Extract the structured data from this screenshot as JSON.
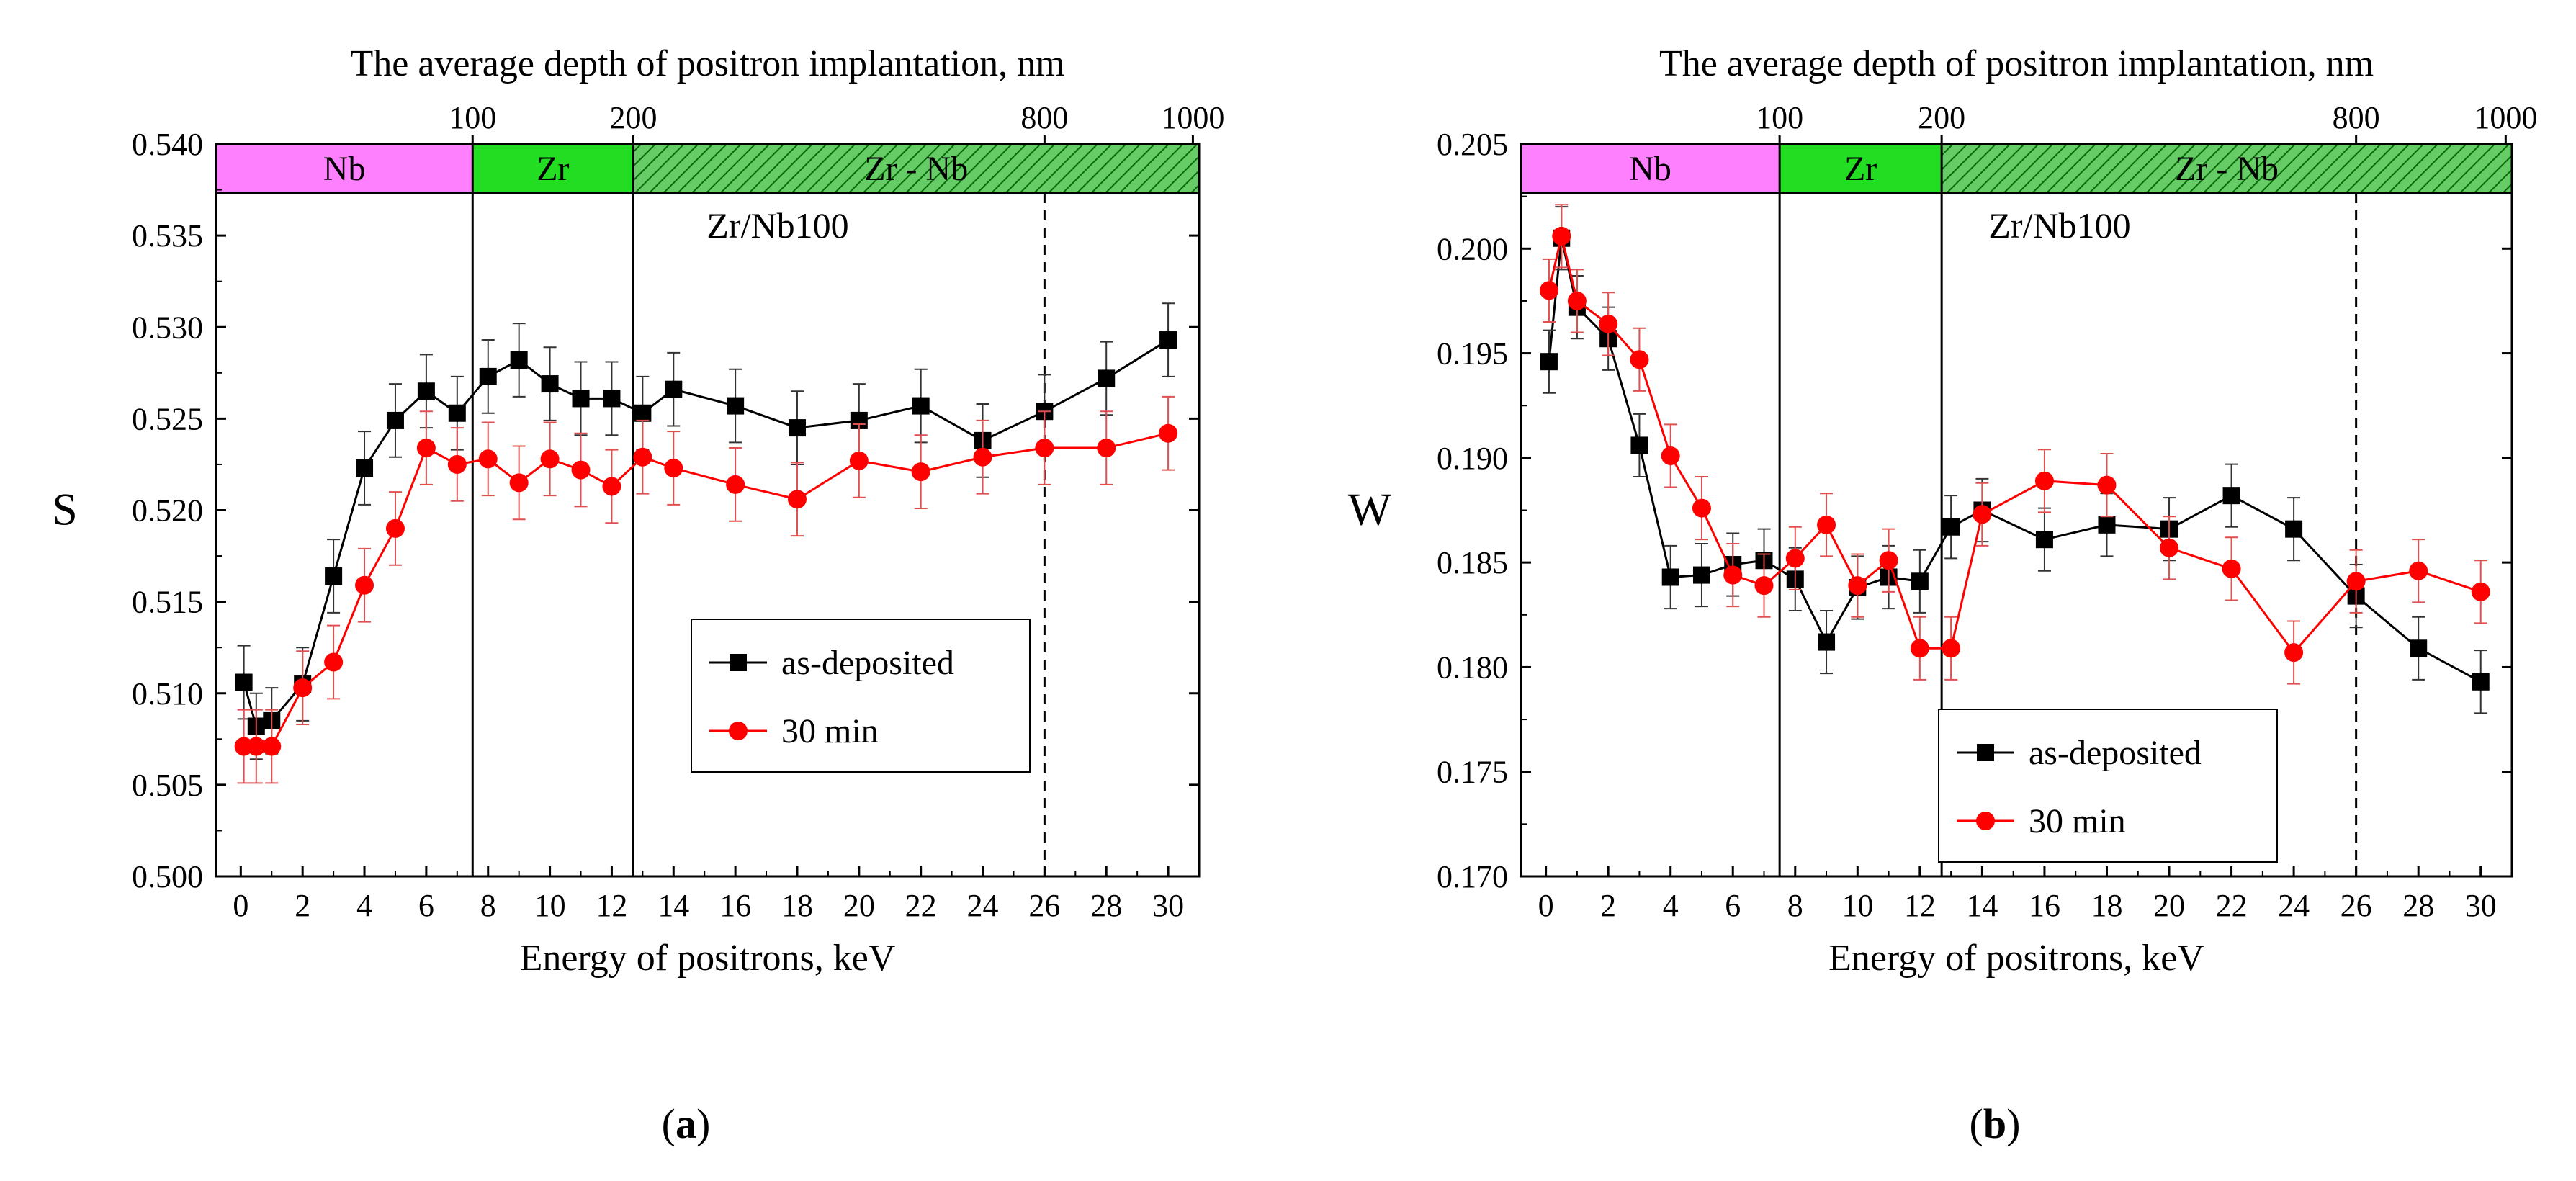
{
  "chart_data": [
    {
      "type": "line",
      "panel_label": "a",
      "ylabel": "S",
      "xlabel": "Energy of positrons, keV",
      "top_xlabel": "The average depth of positron implantation, nm",
      "annotation": "Zr/Nb100",
      "xlim": [
        -0.8,
        31
      ],
      "ylim": [
        0.5,
        0.54
      ],
      "x_ticks": [
        0,
        2,
        4,
        6,
        8,
        10,
        12,
        14,
        16,
        18,
        20,
        22,
        24,
        26,
        28,
        30
      ],
      "y_ticks": [
        0.5,
        0.505,
        0.51,
        0.515,
        0.52,
        0.525,
        0.53,
        0.535,
        0.54
      ],
      "y_tick_labels": [
        "0.500",
        "0.505",
        "0.510",
        "0.515",
        "0.520",
        "0.525",
        "0.530",
        "0.535",
        "0.540"
      ],
      "top_ticks": [
        {
          "label": "100",
          "x": 7.5
        },
        {
          "label": "200",
          "x": 12.7
        },
        {
          "label": "800",
          "x": 26
        },
        {
          "label": "1000",
          "x": 30.8
        }
      ],
      "regions": [
        {
          "label": "Nb",
          "x0": -0.8,
          "x1": 7.5,
          "color": "#ff80ff",
          "hatched": false
        },
        {
          "label": "Zr",
          "x0": 7.5,
          "x1": 12.7,
          "color": "#22dd22",
          "hatched": false
        },
        {
          "label": "Zr - Nb",
          "x0": 12.7,
          "x1": 31,
          "color": "#66cc66",
          "hatched": true
        }
      ],
      "solid_lines_x": [
        7.5,
        12.7
      ],
      "dashed_line_x": 26,
      "series": [
        {
          "name": "as-deposited",
          "color": "#000000",
          "marker": "square",
          "x": [
            0.1,
            0.5,
            1,
            2,
            3,
            4,
            5,
            6,
            7,
            8,
            9,
            10,
            11,
            12,
            13,
            14,
            16,
            18,
            20,
            22,
            24,
            26,
            28,
            30
          ],
          "y": [
            0.5106,
            0.5082,
            0.5085,
            0.5105,
            0.5164,
            0.5223,
            0.5249,
            0.5265,
            0.5253,
            0.5273,
            0.5282,
            0.5269,
            0.5261,
            0.5261,
            0.5253,
            0.5266,
            0.5257,
            0.5245,
            0.5249,
            0.5257,
            0.5238,
            0.5254,
            0.5272,
            0.5293
          ],
          "err": [
            0.002,
            0.0018,
            0.0018,
            0.002,
            0.002,
            0.002,
            0.002,
            0.002,
            0.002,
            0.002,
            0.002,
            0.002,
            0.002,
            0.002,
            0.002,
            0.002,
            0.002,
            0.002,
            0.002,
            0.002,
            0.002,
            0.002,
            0.002,
            0.002
          ]
        },
        {
          "name": "30 min",
          "color": "#ff0000",
          "marker": "circle",
          "x": [
            0.1,
            0.5,
            1,
            2,
            3,
            4,
            5,
            6,
            7,
            8,
            9,
            10,
            11,
            12,
            13,
            14,
            16,
            18,
            20,
            22,
            24,
            26,
            28,
            30
          ],
          "y": [
            0.5071,
            0.5071,
            0.5071,
            0.5103,
            0.5117,
            0.5159,
            0.519,
            0.5234,
            0.5225,
            0.5228,
            0.5215,
            0.5228,
            0.5222,
            0.5213,
            0.5229,
            0.5223,
            0.5214,
            0.5206,
            0.5227,
            0.5221,
            0.5229,
            0.5234,
            0.5234,
            0.5242
          ],
          "err": [
            0.002,
            0.002,
            0.002,
            0.002,
            0.002,
            0.002,
            0.002,
            0.002,
            0.002,
            0.002,
            0.002,
            0.002,
            0.002,
            0.002,
            0.002,
            0.002,
            0.002,
            0.002,
            0.002,
            0.002,
            0.002,
            0.002,
            0.002,
            0.002
          ]
        }
      ]
    },
    {
      "type": "line",
      "panel_label": "b",
      "ylabel": "W",
      "xlabel": "Energy of positrons, keV",
      "top_xlabel": "The average depth of positron implantation, nm",
      "annotation": "Zr/Nb100",
      "xlim": [
        -0.8,
        31
      ],
      "ylim": [
        0.17,
        0.205
      ],
      "x_ticks": [
        0,
        2,
        4,
        6,
        8,
        10,
        12,
        14,
        16,
        18,
        20,
        22,
        24,
        26,
        28,
        30
      ],
      "y_ticks": [
        0.17,
        0.175,
        0.18,
        0.185,
        0.19,
        0.195,
        0.2,
        0.205
      ],
      "y_tick_labels": [
        "0.170",
        "0.175",
        "0.180",
        "0.185",
        "0.190",
        "0.195",
        "0.200",
        "0.205"
      ],
      "top_ticks": [
        {
          "label": "100",
          "x": 7.5
        },
        {
          "label": "200",
          "x": 12.7
        },
        {
          "label": "800",
          "x": 26
        },
        {
          "label": "1000",
          "x": 30.8
        }
      ],
      "regions": [
        {
          "label": "Nb",
          "x0": -0.8,
          "x1": 7.5,
          "color": "#ff80ff",
          "hatched": false
        },
        {
          "label": "Zr",
          "x0": 7.5,
          "x1": 12.7,
          "color": "#22dd22",
          "hatched": false
        },
        {
          "label": "Zr - Nb",
          "x0": 12.7,
          "x1": 31,
          "color": "#66cc66",
          "hatched": true
        }
      ],
      "solid_lines_x": [
        7.5,
        12.7
      ],
      "dashed_line_x": 26,
      "series": [
        {
          "name": "as-deposited",
          "color": "#000000",
          "marker": "square",
          "x": [
            0.1,
            0.5,
            1,
            2,
            3,
            4,
            5,
            6,
            7,
            8,
            9,
            10,
            11,
            12,
            13,
            14,
            16,
            18,
            20,
            22,
            24,
            26,
            28,
            30
          ],
          "y": [
            0.1946,
            0.2005,
            0.1972,
            0.1957,
            0.1906,
            0.1843,
            0.1844,
            0.1849,
            0.1851,
            0.1842,
            0.1812,
            0.1838,
            0.1843,
            0.1841,
            0.1867,
            0.1875,
            0.1861,
            0.1868,
            0.1866,
            0.1882,
            0.1866,
            0.1834,
            0.1809,
            0.1793
          ],
          "err": [
            0.0015,
            0.0015,
            0.0015,
            0.0015,
            0.0015,
            0.0015,
            0.0015,
            0.0015,
            0.0015,
            0.0015,
            0.0015,
            0.0015,
            0.0015,
            0.0015,
            0.0015,
            0.0015,
            0.0015,
            0.0015,
            0.0015,
            0.0015,
            0.0015,
            0.0015,
            0.0015,
            0.0015
          ]
        },
        {
          "name": "30 min",
          "color": "#ff0000",
          "marker": "circle",
          "x": [
            0.1,
            0.5,
            1,
            2,
            3,
            4,
            5,
            6,
            7,
            8,
            9,
            10,
            11,
            12,
            13,
            14,
            16,
            18,
            20,
            22,
            24,
            26,
            28,
            30
          ],
          "y": [
            0.198,
            0.2006,
            0.1975,
            0.1964,
            0.1947,
            0.1901,
            0.1876,
            0.1844,
            0.1839,
            0.1852,
            0.1868,
            0.1839,
            0.1851,
            0.1809,
            0.1809,
            0.1873,
            0.1889,
            0.1887,
            0.1857,
            0.1847,
            0.1807,
            0.1841,
            0.1846,
            0.1836
          ],
          "err": [
            0.0015,
            0.0015,
            0.0015,
            0.0015,
            0.0015,
            0.0015,
            0.0015,
            0.0015,
            0.0015,
            0.0015,
            0.0015,
            0.0015,
            0.0015,
            0.0015,
            0.0015,
            0.0015,
            0.0015,
            0.0015,
            0.0015,
            0.0015,
            0.0015,
            0.0015,
            0.0015,
            0.0015
          ]
        }
      ]
    }
  ]
}
